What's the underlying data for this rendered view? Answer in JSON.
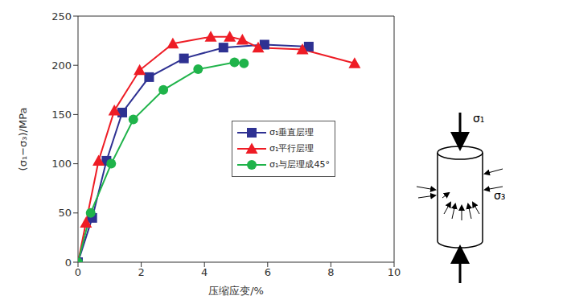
{
  "chart_data": {
    "type": "line",
    "x_label": "压缩应变/%",
    "y_label": "(σ₁−σ₃)/MPa",
    "xlim": [
      0,
      10
    ],
    "xticks": [
      0,
      2,
      4,
      6,
      8,
      10
    ],
    "ylim": [
      0,
      250
    ],
    "yticks": [
      0,
      50,
      100,
      150,
      200,
      250
    ],
    "grid": false,
    "legend": "center",
    "series": [
      {
        "name": "σ₁垂直层理",
        "color": "#2e3192",
        "marker": "square",
        "x": [
          0,
          0.45,
          0.9,
          1.4,
          2.25,
          3.35,
          4.6,
          5.9,
          7.3
        ],
        "values": [
          0,
          45,
          103,
          152,
          188,
          207,
          218,
          221,
          219
        ]
      },
      {
        "name": "σ₁平行层理",
        "color": "#ee1c25",
        "marker": "triangle",
        "x": [
          0,
          0.25,
          0.65,
          1.15,
          1.95,
          3.0,
          4.2,
          4.8,
          5.2,
          5.7,
          7.1,
          8.75
        ],
        "values": [
          0,
          40,
          103,
          154,
          195,
          222,
          229,
          229,
          226,
          218,
          216,
          202
        ]
      },
      {
        "name": "σ₁与层理成45°",
        "color": "#1fb34a",
        "marker": "circle",
        "x": [
          0,
          0.4,
          1.05,
          1.75,
          2.7,
          3.8,
          4.95,
          5.25
        ],
        "values": [
          0,
          50,
          100,
          145,
          175,
          196,
          203,
          202
        ]
      }
    ]
  },
  "diagram": {
    "top_label": "σ₁",
    "side_label": "σ₃"
  }
}
